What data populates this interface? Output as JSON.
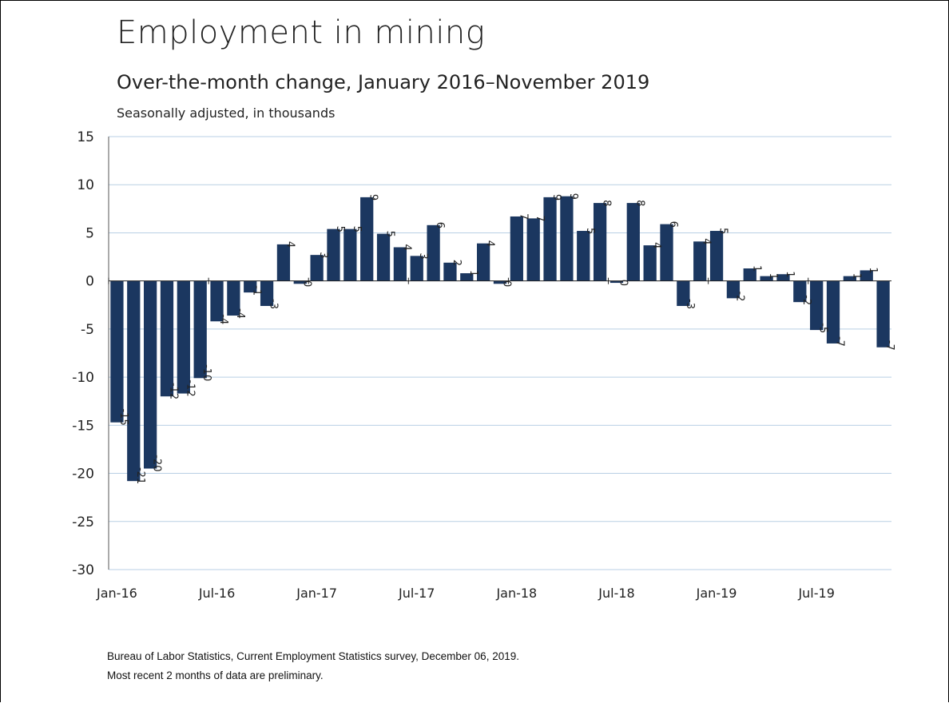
{
  "header": {
    "title": "Employment in mining",
    "subtitle": "Over-the-month change, January 2016–November 2019",
    "units": "Seasonally adjusted, in thousands"
  },
  "footer": {
    "source": "Bureau of Labor Statistics, Current Employment Statistics survey, December 06, 2019.",
    "note": "Most recent 2 months of data are preliminary."
  },
  "colors": {
    "bar": "#1b3760",
    "grid": "#b9cfe4",
    "axis": "#555555"
  },
  "chart_data": {
    "type": "bar",
    "title": "Employment in mining",
    "subtitle": "Over-the-month change, January 2016–November 2019",
    "ylabel": "Seasonally adjusted, in thousands",
    "ylim": [
      -30,
      15
    ],
    "yticks": [
      15,
      10,
      5,
      0,
      -5,
      -10,
      -15,
      -20,
      -25,
      -30
    ],
    "grid": true,
    "legend": "none",
    "x_tick_labels": [
      {
        "index": 0,
        "label": "Jan-16"
      },
      {
        "index": 6,
        "label": "Jul-16"
      },
      {
        "index": 12,
        "label": "Jan-17"
      },
      {
        "index": 18,
        "label": "Jul-17"
      },
      {
        "index": 24,
        "label": "Jan-18"
      },
      {
        "index": 30,
        "label": "Jul-18"
      },
      {
        "index": 36,
        "label": "Jan-19"
      },
      {
        "index": 42,
        "label": "Jul-19"
      }
    ],
    "categories": [
      "Jan-16",
      "Feb-16",
      "Mar-16",
      "Apr-16",
      "May-16",
      "Jun-16",
      "Jul-16",
      "Aug-16",
      "Sep-16",
      "Oct-16",
      "Nov-16",
      "Dec-16",
      "Jan-17",
      "Feb-17",
      "Mar-17",
      "Apr-17",
      "May-17",
      "Jun-17",
      "Jul-17",
      "Aug-17",
      "Sep-17",
      "Oct-17",
      "Nov-17",
      "Dec-17",
      "Jan-18",
      "Feb-18",
      "Mar-18",
      "Apr-18",
      "May-18",
      "Jun-18",
      "Jul-18",
      "Aug-18",
      "Sep-18",
      "Oct-18",
      "Nov-18",
      "Dec-18",
      "Jan-19",
      "Feb-19",
      "Mar-19",
      "Apr-19",
      "May-19",
      "Jun-19",
      "Jul-19",
      "Aug-19",
      "Sep-19",
      "Oct-19",
      "Nov-19"
    ],
    "values": [
      -14.7,
      -20.8,
      -19.5,
      -12.0,
      -11.7,
      -10.1,
      -4.2,
      -3.6,
      -1.2,
      -2.6,
      3.8,
      -0.3,
      2.7,
      5.4,
      5.4,
      8.7,
      4.9,
      3.5,
      2.6,
      5.8,
      1.9,
      0.8,
      3.9,
      -0.3,
      6.7,
      6.5,
      8.7,
      8.8,
      5.2,
      8.1,
      -0.2,
      8.1,
      3.7,
      5.9,
      -2.6,
      4.1,
      5.2,
      -1.8,
      1.3,
      0.5,
      0.7,
      -2.2,
      -5.1,
      -6.5,
      0.5,
      1.1,
      -6.9
    ],
    "data_labels": [
      "-15",
      "-21",
      "-20",
      "-12",
      "-12",
      "-10",
      "-4",
      "-4",
      "-1",
      "-3",
      "4",
      "0",
      "3",
      "5",
      "5",
      "9",
      "5",
      "4",
      "3",
      "6",
      "2",
      "1",
      "4",
      "0",
      "7",
      "7",
      "9",
      "9",
      "5",
      "8",
      "0",
      "8",
      "4",
      "6",
      "-3",
      "4",
      "5",
      "-2",
      "1",
      "1",
      "1",
      "-2",
      "-5",
      "-7",
      "1",
      "1",
      "-7"
    ]
  }
}
